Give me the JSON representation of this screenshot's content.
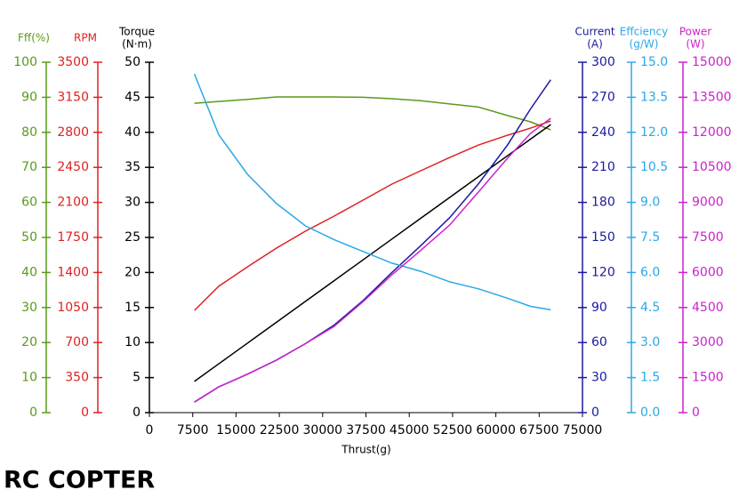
{
  "chart_data": {
    "type": "line",
    "x_label": "Thrust(g)",
    "x": [
      7800,
      12000,
      17000,
      22000,
      27000,
      32000,
      37000,
      42000,
      47000,
      52000,
      57000,
      62000,
      66000,
      69500
    ],
    "xlim": [
      0,
      75000
    ],
    "xticks": [
      0,
      7500,
      15000,
      22500,
      30000,
      37500,
      45000,
      52500,
      60000,
      67500,
      75000
    ],
    "axes": [
      {
        "title": [
          "Fff(%)"
        ],
        "side": "left",
        "color": "#5a9a1a",
        "ylim": [
          0,
          100
        ],
        "yticks": [
          0,
          10,
          20,
          30,
          40,
          50,
          60,
          70,
          80,
          90,
          100
        ],
        "values": [
          88.3,
          88.8,
          89.4,
          90.1,
          90.1,
          90.1,
          90.0,
          89.6,
          89.0,
          88.1,
          87.2,
          84.8,
          83.0,
          80.7
        ]
      },
      {
        "title": [
          "RPM"
        ],
        "side": "left",
        "color": "#e02020",
        "ylim": [
          0,
          3500
        ],
        "yticks": [
          0,
          350,
          700,
          1050,
          1400,
          1750,
          2100,
          2450,
          2800,
          3150,
          3500
        ],
        "values": [
          1021,
          1261,
          1457,
          1643,
          1812,
          1963,
          2123,
          2283,
          2416,
          2549,
          2673,
          2771,
          2842,
          2913
        ]
      },
      {
        "title": [
          "Torque",
          "(N·m)"
        ],
        "side": "left",
        "color": "#000000",
        "ylim": [
          0,
          50
        ],
        "yticks": [
          0,
          5,
          10,
          15,
          20,
          25,
          30,
          35,
          40,
          45,
          50
        ],
        "values": [
          4.45,
          6.95,
          9.92,
          12.89,
          15.86,
          18.83,
          21.8,
          24.77,
          27.74,
          30.71,
          33.68,
          36.65,
          39.03,
          41.1
        ]
      },
      {
        "title": [
          "Current",
          "(A)"
        ],
        "side": "right",
        "color": "#1a1aa0",
        "ylim": [
          0,
          300
        ],
        "yticks": [
          0,
          30,
          60,
          90,
          120,
          150,
          180,
          210,
          240,
          270,
          300
        ],
        "values": [
          9,
          22,
          33,
          45,
          59,
          75,
          96,
          120,
          143,
          167,
          196,
          229,
          260,
          285
        ]
      },
      {
        "title": [
          "Effciency",
          "(g/W)"
        ],
        "side": "right",
        "color": "#2aa8e8",
        "ylim": [
          0,
          15
        ],
        "yticks": [
          {
            "value": 0,
            "label": "0.0"
          },
          1.5,
          {
            "value": 3,
            "label": "3.0"
          },
          4.5,
          {
            "value": 6,
            "label": "6.0"
          },
          7.5,
          {
            "value": 9,
            "label": "9.0"
          },
          10.5,
          {
            "value": 12,
            "label": "12.0"
          },
          13.5,
          {
            "value": 15,
            "label": "15.0"
          }
        ],
        "values": [
          14.5,
          11.9,
          10.2,
          8.95,
          8.0,
          7.4,
          6.9,
          6.4,
          6.05,
          5.6,
          5.3,
          4.9,
          4.55,
          4.4
        ]
      },
      {
        "title": [
          "Power",
          "(W)"
        ],
        "side": "right",
        "color": "#cc22cc",
        "ylim": [
          0,
          15000
        ],
        "yticks": [
          0,
          1500,
          3000,
          4500,
          6000,
          7500,
          9000,
          10500,
          12000,
          13500,
          15000
        ],
        "values": [
          457,
          1100,
          1650,
          2246,
          2950,
          3693,
          4750,
          5901,
          6950,
          8033,
          9450,
          10888,
          11954,
          12602
        ]
      }
    ]
  },
  "logo": "RC COPTER"
}
